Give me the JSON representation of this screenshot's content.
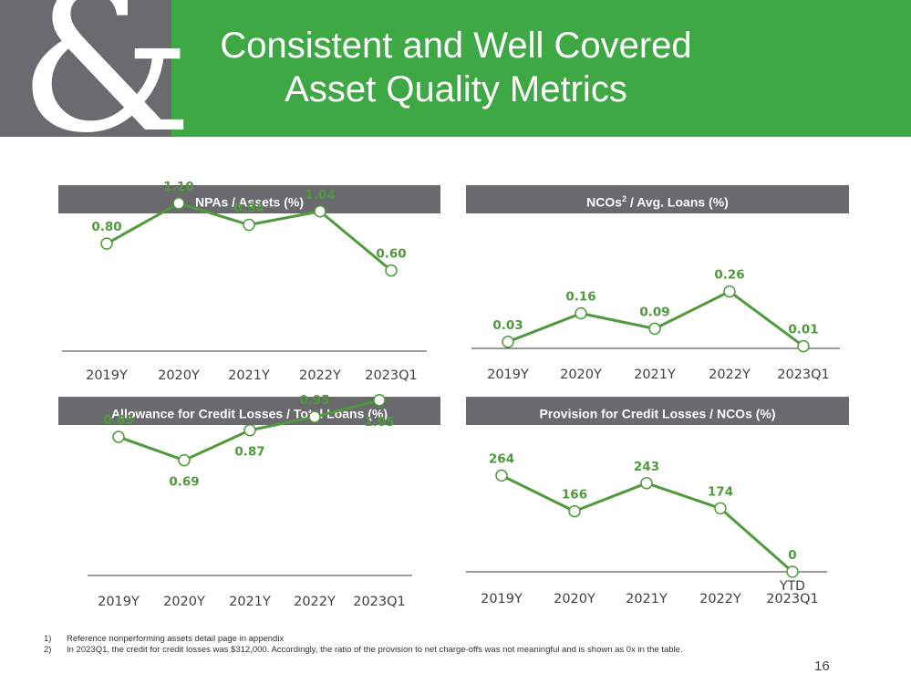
{
  "header": {
    "logo_glyph": "&",
    "title_line1": "Consistent and Well Covered",
    "title_line2": "Asset Quality Metrics"
  },
  "colors": {
    "accent_green": "#3ea844",
    "line_green": "#4f9a3b",
    "header_gray": "#69696e",
    "logo_gray": "#6a6a6f"
  },
  "chart_data": [
    {
      "type": "line",
      "title": "NPAs / Assets (%)",
      "title_sup": "",
      "title_rest": "",
      "categories": [
        "2019Y",
        "2020Y",
        "2021Y",
        "2022Y",
        "2023Q1"
      ],
      "values": [
        0.8,
        1.1,
        0.94,
        1.04,
        0.6
      ],
      "labels": [
        "0.80",
        "1.10",
        "0.94",
        "1.04",
        "0.60"
      ],
      "ylim": [
        0,
        1.5
      ],
      "grid": false,
      "label_position": [
        "above",
        "above",
        "above",
        "above",
        "above"
      ]
    },
    {
      "type": "line",
      "title": "NCOs",
      "title_sup": "2",
      "title_rest": " / Avg. Loans (%)",
      "categories": [
        "2019Y",
        "2020Y",
        "2021Y",
        "2022Y",
        "2023Q1"
      ],
      "values": [
        0.03,
        0.16,
        0.09,
        0.26,
        0.01
      ],
      "labels": [
        "0.03",
        "0.16",
        "0.09",
        "0.26",
        "0.01"
      ],
      "ylim": [
        0,
        0.5
      ],
      "grid": false,
      "label_position": [
        "above",
        "above",
        "above",
        "above",
        "above"
      ]
    },
    {
      "type": "line",
      "title": "Allowance for Credit Losses / Total Loans (%)",
      "title_sup": "",
      "title_rest": "",
      "categories": [
        "2019Y",
        "2020Y",
        "2021Y",
        "2022Y",
        "2023Q1"
      ],
      "values": [
        0.83,
        0.69,
        0.87,
        0.95,
        1.05
      ],
      "labels": [
        "0.83",
        "0.69",
        "0.87",
        "0.95",
        "1.05"
      ],
      "ylim": [
        0,
        1.3
      ],
      "grid": false,
      "label_position": [
        "above",
        "below",
        "below",
        "above",
        "below"
      ]
    },
    {
      "type": "line",
      "title": "Provision for Credit Losses / NCOs (%)",
      "title_sup": "",
      "title_rest": "",
      "categories": [
        "2019Y",
        "2020Y",
        "2021Y",
        "2022Y",
        "2023Q1"
      ],
      "values": [
        264,
        166,
        243,
        174,
        0
      ],
      "labels": [
        "264",
        "166",
        "243",
        "174",
        "0"
      ],
      "ylim": [
        0,
        290
      ],
      "grid": false,
      "label_position": [
        "above",
        "above",
        "above",
        "above",
        "above"
      ],
      "extra_label": "YTD"
    }
  ],
  "footnotes": [
    {
      "num": "1)",
      "text": "Reference nonperforming assets detail page in appendix"
    },
    {
      "num": "2)",
      "text": "In 2023Q1, the credit for credit losses was $312,000. Accordingly, the ratio of  the provision to net charge-offs was not meaningful and is shown as 0x in the table."
    }
  ],
  "page_number": "16"
}
